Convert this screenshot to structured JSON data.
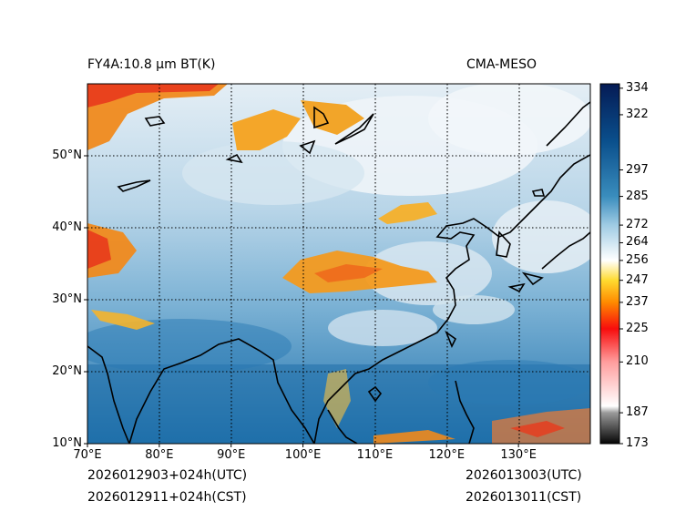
{
  "header": {
    "left_title": "FY4A:10.8 µm BT(K)",
    "right_title": "CMA-MESO"
  },
  "footer": {
    "init_utc": "2026012903+024h(UTC)",
    "init_cst": "2026012911+024h(CST)",
    "valid_utc": "2026013003(UTC)",
    "valid_cst": "2026013011(CST)"
  },
  "axes": {
    "lon_range": [
      70,
      140
    ],
    "lat_range": [
      10,
      60
    ],
    "lon_ticks": [
      "70°E",
      "80°E",
      "90°E",
      "100°E",
      "110°E",
      "120°E",
      "130°E"
    ],
    "lon_values": [
      70,
      80,
      90,
      100,
      110,
      120,
      130
    ],
    "lat_ticks": [
      "10°N",
      "20°N",
      "30°N",
      "40°N",
      "50°N"
    ],
    "lat_values": [
      10,
      20,
      30,
      40,
      50
    ]
  },
  "colorbar": {
    "range": [
      173,
      336
    ],
    "tick_labels": [
      "334",
      "322",
      "297",
      "285",
      "272",
      "264",
      "256",
      "247",
      "237",
      "225",
      "210",
      "187",
      "173"
    ],
    "tick_values": [
      334,
      322,
      297,
      285,
      272,
      264,
      256,
      247,
      237,
      225,
      210,
      187,
      173
    ],
    "colors": [
      "#050505",
      "#9a9a9a",
      "#ffffff",
      "#ff9d9d",
      "#f70d0d",
      "#ff8a00",
      "#ffdb30",
      "#ffffff",
      "#9fcbe4",
      "#3a8dbd",
      "#0a4f8c",
      "#051b55"
    ],
    "color_stops": [
      173,
      187,
      190,
      210,
      225,
      237,
      247,
      256,
      272,
      285,
      310,
      336
    ]
  }
}
